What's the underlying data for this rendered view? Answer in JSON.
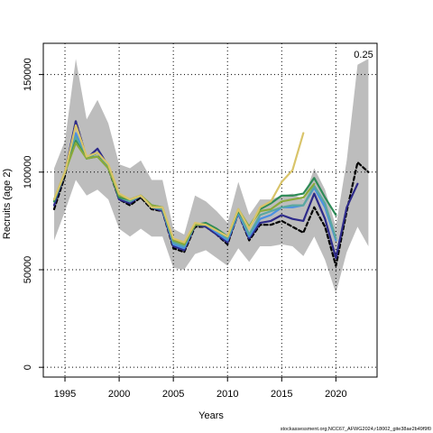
{
  "chart_data": {
    "type": "line",
    "xlabel": "Years",
    "ylabel": "Recruits (age 2)",
    "xlim": [
      1993,
      2023.8
    ],
    "ylim": [
      -5000,
      166000
    ],
    "xticks": [
      1995,
      2000,
      2005,
      2010,
      2015,
      2020
    ],
    "yticks": [
      0,
      50000,
      100000,
      150000
    ],
    "grid": "dotted",
    "annotation": "0.25",
    "footer": "stockassessment.org,NCC67_AFWG2024,r18002_gite38ae2b49f9f0",
    "colors": {
      "band": "#bdbdbd",
      "navy": "#2d2a8a",
      "blue": "#4a90e2",
      "teal": "#5aa8a0",
      "green": "#2e8b57",
      "olive": "#8aaa3a",
      "yellow": "#d9c46a",
      "black": "#000000"
    },
    "band": {
      "x": [
        1994,
        1995,
        1996,
        1997,
        1998,
        1999,
        2000,
        2001,
        2002,
        2003,
        2004,
        2005,
        2006,
        2007,
        2008,
        2009,
        2010,
        2011,
        2012,
        2013,
        2014,
        2015,
        2016,
        2017,
        2018,
        2019,
        2020,
        2021,
        2022,
        2023
      ],
      "lower": [
        65000,
        80000,
        96000,
        88000,
        91000,
        86000,
        71000,
        67000,
        71000,
        67000,
        67000,
        51000,
        50000,
        58000,
        60000,
        56000,
        52000,
        61000,
        54000,
        62000,
        62000,
        63000,
        62000,
        57000,
        67000,
        55000,
        38000,
        59000,
        72000,
        62000
      ],
      "upper": [
        102000,
        116000,
        158000,
        127000,
        137000,
        125000,
        104000,
        102000,
        106000,
        96000,
        96000,
        71000,
        68000,
        88000,
        85000,
        80000,
        74000,
        95000,
        78000,
        86000,
        86000,
        88000,
        89000,
        86000,
        102000,
        91000,
        72000,
        106000,
        155000,
        158000
      ]
    },
    "series": [
      {
        "color": "#000000",
        "dash": "4,3",
        "width": 2.2,
        "x": [
          1994,
          1995,
          1996,
          1997,
          1998,
          1999,
          2000,
          2001,
          2002,
          2003,
          2004,
          2005,
          2006,
          2007,
          2008,
          2009,
          2010,
          2011,
          2012,
          2013,
          2014,
          2015,
          2016,
          2017,
          2018,
          2019,
          2020,
          2021,
          2022,
          2023
        ],
        "values": [
          81000,
          98000,
          126000,
          107000,
          110000,
          102000,
          86000,
          83000,
          87000,
          81000,
          80000,
          61000,
          59000,
          72000,
          72000,
          68000,
          63000,
          79000,
          65000,
          73000,
          73000,
          75000,
          72000,
          69000,
          82000,
          72000,
          52000,
          80000,
          105000,
          100000
        ]
      },
      {
        "color": "#2d2a8a",
        "dash": "",
        "width": 2.2,
        "x": [
          1994,
          1995,
          1996,
          1997,
          1998,
          1999,
          2000,
          2001,
          2002,
          2003,
          2004,
          2005,
          2006,
          2007,
          2008,
          2009,
          2010,
          2011,
          2012,
          2013,
          2014,
          2015,
          2016,
          2017,
          2018,
          2019,
          2020,
          2021,
          2022
        ],
        "values": [
          83000,
          100000,
          126000,
          107000,
          112000,
          103000,
          86000,
          84000,
          88000,
          82000,
          80000,
          62000,
          60000,
          73000,
          72000,
          68000,
          64000,
          79000,
          66000,
          74000,
          75000,
          78000,
          76000,
          75000,
          89000,
          76000,
          56000,
          82000,
          94000
        ]
      },
      {
        "color": "#4a90e2",
        "dash": "",
        "width": 2.2,
        "x": [
          1994,
          1995,
          1996,
          1997,
          1998,
          1999,
          2000,
          2001,
          2002,
          2003,
          2004,
          2005,
          2006,
          2007,
          2008,
          2009,
          2010,
          2011,
          2012,
          2013,
          2014,
          2015,
          2016,
          2017,
          2018,
          2019,
          2020
        ],
        "values": [
          85000,
          100000,
          120000,
          107000,
          110000,
          103000,
          87000,
          85000,
          88000,
          82000,
          81000,
          63000,
          61000,
          73000,
          73000,
          69000,
          65000,
          79000,
          67000,
          76000,
          78000,
          82000,
          82000,
          83000,
          92000,
          82000,
          65000
        ]
      },
      {
        "color": "#5aa8a0",
        "dash": "",
        "width": 2.2,
        "x": [
          1994,
          1995,
          1996,
          1997,
          1998,
          1999,
          2000,
          2001,
          2002,
          2003,
          2004,
          2005,
          2006,
          2007,
          2008,
          2009,
          2010,
          2011,
          2012,
          2013,
          2014,
          2015,
          2016,
          2017,
          2018,
          2019,
          2020
        ],
        "values": [
          85000,
          100000,
          118000,
          107000,
          110000,
          103000,
          87000,
          85000,
          88000,
          82000,
          81000,
          64000,
          62000,
          73000,
          73000,
          70000,
          66000,
          80000,
          68000,
          78000,
          80000,
          82000,
          83000,
          83000,
          93000,
          84000,
          66000
        ]
      },
      {
        "color": "#2e8b57",
        "dash": "",
        "width": 2.2,
        "x": [
          1994,
          1995,
          1996,
          1997,
          1998,
          1999,
          2000,
          2001,
          2002,
          2003,
          2004,
          2005,
          2006,
          2007,
          2008,
          2009,
          2010,
          2011,
          2012,
          2013,
          2014,
          2015,
          2016,
          2017,
          2018,
          2019,
          2020
        ],
        "values": [
          85000,
          100000,
          116000,
          107000,
          108000,
          102000,
          87000,
          86000,
          88000,
          83000,
          82000,
          65000,
          63000,
          73000,
          74000,
          71000,
          67000,
          80000,
          72000,
          81000,
          84000,
          88000,
          88000,
          89000,
          97000,
          87000,
          78000
        ]
      },
      {
        "color": "#8aaa3a",
        "dash": "",
        "width": 2.2,
        "x": [
          1994,
          1995,
          1996,
          1997,
          1998,
          1999,
          2000,
          2001,
          2002,
          2003,
          2004,
          2005,
          2006,
          2007,
          2008,
          2009,
          2010,
          2011,
          2012,
          2013,
          2014,
          2015,
          2016,
          2017,
          2018
        ],
        "values": [
          86000,
          100000,
          115000,
          107000,
          108000,
          102000,
          88000,
          86000,
          88000,
          83000,
          82000,
          65000,
          63000,
          73000,
          73000,
          70000,
          67000,
          81000,
          72000,
          80000,
          81000,
          85000,
          86000,
          87000,
          94000
        ]
      },
      {
        "color": "#d9c46a",
        "dash": "",
        "width": 2.2,
        "x": [
          1994,
          1995,
          1996,
          1997,
          1998,
          1999,
          2000,
          2001,
          2002,
          2003,
          2004,
          2005,
          2006,
          2007,
          2008,
          2009,
          2010,
          2011,
          2012,
          2013,
          2014,
          2015,
          2016,
          2017
        ],
        "values": [
          86000,
          100000,
          124000,
          108000,
          110000,
          104000,
          89000,
          86000,
          88000,
          82000,
          82000,
          66000,
          64000,
          74000,
          73000,
          70000,
          67000,
          81000,
          71000,
          82000,
          85000,
          95000,
          101000,
          120000
        ]
      }
    ]
  }
}
